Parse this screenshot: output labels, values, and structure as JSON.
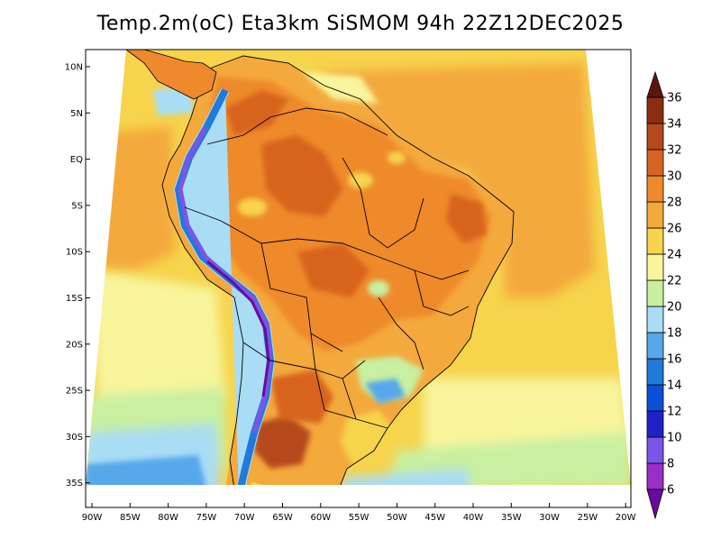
{
  "title": "Temp.2m(oC) Eta3km SiSMOM 94h 22Z12DEC2025",
  "map": {
    "lat_labels": [
      "10N",
      "5N",
      "EQ",
      "5S",
      "10S",
      "15S",
      "20S",
      "25S",
      "30S",
      "35S"
    ],
    "lon_labels": [
      "90W",
      "85W",
      "80W",
      "75W",
      "70W",
      "65W",
      "60W",
      "55W",
      "50W",
      "45W",
      "40W",
      "35W",
      "30W",
      "25W",
      "20W"
    ],
    "lon_range": [
      -91,
      -19
    ],
    "lat_range": [
      -38,
      12
    ]
  },
  "colorbar": {
    "labels": [
      "6",
      "8",
      "10",
      "12",
      "14",
      "16",
      "18",
      "20",
      "22",
      "24",
      "26",
      "28",
      "30",
      "32",
      "34",
      "36"
    ],
    "colors": [
      "#6a0a9e",
      "#9a2fc7",
      "#7a56e6",
      "#2020c8",
      "#0a4fd8",
      "#1f7ad9",
      "#57a8eb",
      "#a9dcf5",
      "#c8f0a0",
      "#f8f59c",
      "#f6d44c",
      "#f4a93c",
      "#ee8a2c",
      "#d8641f",
      "#b5481a",
      "#8a2e12",
      "#5a1708"
    ]
  }
}
